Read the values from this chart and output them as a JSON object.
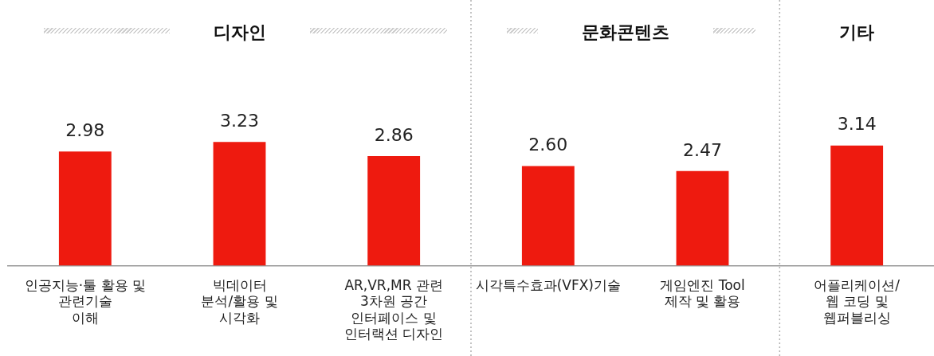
{
  "chart_data": {
    "type": "bar",
    "categories": [
      "인공지능·툴 활용 및\n관련기술\n이해",
      "빅데이터\n분석/활용 및\n시각화",
      "AR,VR,MR 관련\n3차원 공간\n인터페이스 및\n인터랙션 디자인",
      "시각특수효과(VFX)기술",
      "게임엔진 Tool\n제작 및 활용",
      "어플리케이션/\n웹 코딩 및\n웹퍼블리싱"
    ],
    "values": [
      2.98,
      3.23,
      2.86,
      2.6,
      2.47,
      3.14
    ],
    "value_labels": [
      "2.98",
      "3.23",
      "2.86",
      "2.60",
      "2.47",
      "3.14"
    ],
    "color": "#ee1a0f",
    "annotations": [
      "디자인",
      "문화콘텐츠",
      "기타"
    ]
  }
}
